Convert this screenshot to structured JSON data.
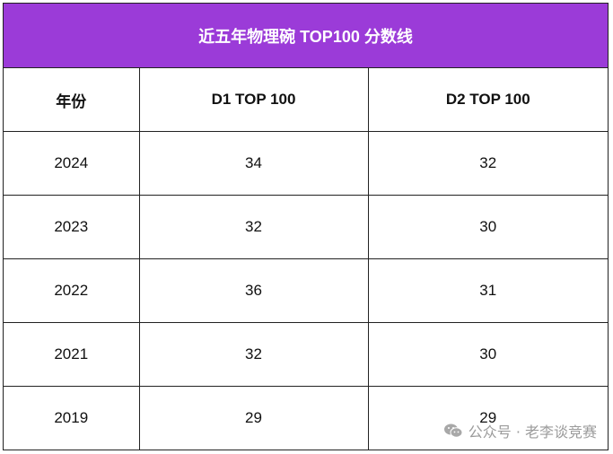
{
  "title": "近五年物理碗 TOP100 分数线",
  "headers": [
    "年份",
    "D1 TOP 100",
    "D2 TOP 100"
  ],
  "rows": [
    [
      "2024",
      "34",
      "32"
    ],
    [
      "2023",
      "32",
      "30"
    ],
    [
      "2022",
      "36",
      "31"
    ],
    [
      "2021",
      "32",
      "30"
    ],
    [
      "2019",
      "29",
      "29"
    ]
  ],
  "watermark": {
    "text": "公众号 · 老李谈竞赛",
    "icon": "wechat-icon"
  },
  "colors": {
    "title_bg": "#9b3bd8",
    "title_text": "#ffffff"
  }
}
